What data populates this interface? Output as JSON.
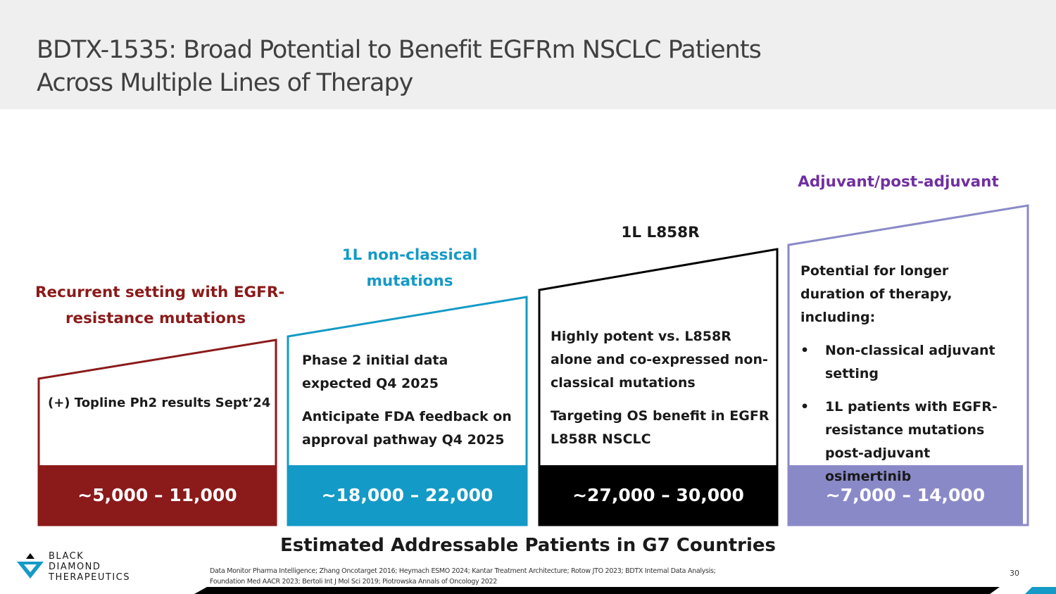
{
  "title": {
    "line1": "BDTX-1535: Broad Potential to Benefit EGFRm NSCLC Patients",
    "line2": "Across Multiple Lines of Therapy"
  },
  "colors": {
    "recurrent": "#8b1a1a",
    "nonclassical": "#149ac6",
    "l858r": "#000000",
    "adjuvant": "#8a89c8",
    "adjuvant_label": "#7030a0"
  },
  "segments": [
    {
      "label_lines": [
        "Recurrent setting with EGFR-",
        "resistance mutations"
      ],
      "body": [
        "(+) Topline Ph2 results Sept’24"
      ],
      "patients": "~5,000 – 11,000"
    },
    {
      "label_lines": [
        "1L non-classical",
        "mutations"
      ],
      "body": [
        "Phase 2 initial data expected Q4 2025",
        "Anticipate FDA feedback on approval pathway Q4 2025"
      ],
      "patients": "~18,000 – 22,000"
    },
    {
      "label_lines": [
        "1L L858R"
      ],
      "body": [
        "Highly potent vs. L858R alone and co-expressed non-classical mutations",
        "Targeting OS benefit in EGFR L858R NSCLC"
      ],
      "patients": "~27,000 – 30,000"
    },
    {
      "label_lines": [
        "Adjuvant/post-adjuvant"
      ],
      "intro": "Potential for longer duration of therapy, including:",
      "bullets": [
        "Non-classical adjuvant setting",
        "1L patients with EGFR-resistance mutations post-adjuvant osimertinib"
      ],
      "patients": "~7,000 – 14,000"
    }
  ],
  "footer_label": "Estimated Addressable Patients in G7 Countries",
  "references": {
    "line1": "Data Monitor Pharma Intelligence;  Zhang Oncotarget 2016;  Heymach ESMO 2024;  Kantar Treatment Architecture;  Rotow JTO 2023;  BDTX Internal Data Analysis;",
    "line2": "Foundation Med AACR 2023;  Bertoli Int J Mol Sci 2019;  Piotrowska Annals of Oncology 2022"
  },
  "page_number": "30",
  "logo": {
    "line1": "BLACK",
    "line2": "DIAMOND",
    "line3": "THERAPEUTICS",
    "icon": "diamond-logo-icon"
  },
  "bullet_char": "•"
}
